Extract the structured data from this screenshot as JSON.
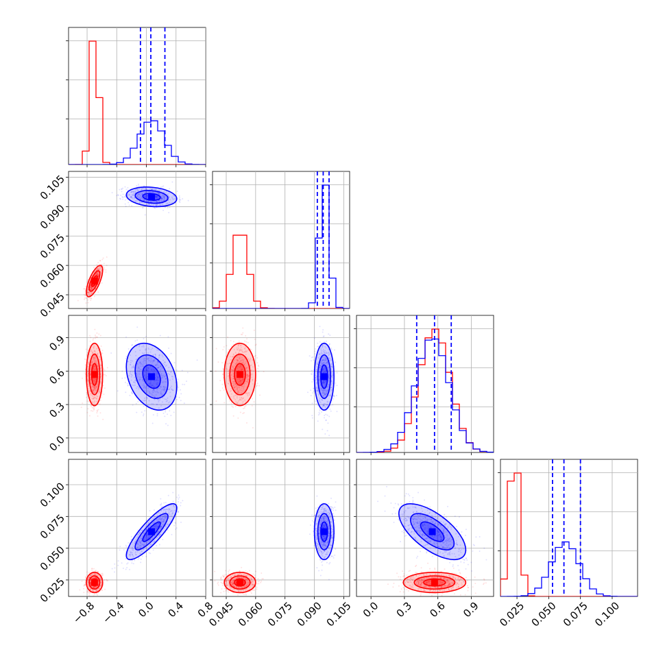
{
  "chart_data": {
    "type": "corner",
    "grid": true,
    "colors": {
      "red": "#ff0000",
      "blue": "#0000ff"
    },
    "series": [
      {
        "color": "#ff0000",
        "params": [
          {
            "mean": -0.7,
            "sd": 0.055
          },
          {
            "mean": 0.052,
            "sd": 0.004
          },
          {
            "mean": 0.57,
            "sd": 0.14
          },
          {
            "mean": 0.023,
            "sd": 0.004
          }
        ]
      },
      {
        "color": "#0000ff",
        "params": [
          {
            "mean": 0.07,
            "sd": 0.17
          },
          {
            "mean": 0.095,
            "sd": 0.0025
          },
          {
            "mean": 0.55,
            "sd": 0.15
          },
          {
            "mean": 0.063,
            "sd": 0.011
          }
        ]
      }
    ],
    "correlations": [
      {
        "series": "red",
        "x": 0,
        "y": 1,
        "rho": 0.7
      },
      {
        "series": "blue",
        "x": 0,
        "y": 3,
        "rho": 0.85
      },
      {
        "series": "blue",
        "x": 2,
        "y": 3,
        "rho": -0.65
      },
      {
        "series": "blue",
        "x": 0,
        "y": 2,
        "rho": -0.3
      },
      {
        "series": "blue",
        "x": 0,
        "y": 1,
        "rho": -0.2
      }
    ],
    "quantile_lines": [
      [
        -0.08,
        0.06,
        0.25
      ],
      [
        0.0915,
        0.0945,
        0.0975
      ],
      [
        0.41,
        0.57,
        0.72
      ],
      [
        0.053,
        0.062,
        0.075
      ]
    ],
    "variables": [
      {
        "range": [
          -1.05,
          0.8
        ],
        "ticks": [
          -0.8,
          -0.4,
          0.0,
          0.4,
          0.8
        ],
        "tick_labels": [
          "−0.8",
          "−0.4",
          "0.0",
          "0.4",
          "0.8"
        ]
      },
      {
        "range": [
          0.038,
          0.108
        ],
        "ticks": [
          0.045,
          0.06,
          0.075,
          0.09,
          0.105
        ],
        "tick_labels": [
          "0.045",
          "0.060",
          "0.075",
          "0.090",
          "0.105"
        ]
      },
      {
        "range": [
          -0.13,
          1.1
        ],
        "ticks": [
          0.0,
          0.3,
          0.6,
          0.9
        ],
        "tick_labels": [
          "0.0",
          "0.3",
          "0.6",
          "0.9"
        ]
      },
      {
        "range": [
          0.012,
          0.12
        ],
        "ticks": [
          0.025,
          0.05,
          0.075,
          0.1
        ],
        "tick_labels": [
          "0.025",
          "0.050",
          "0.075",
          "0.100"
        ]
      }
    ]
  }
}
